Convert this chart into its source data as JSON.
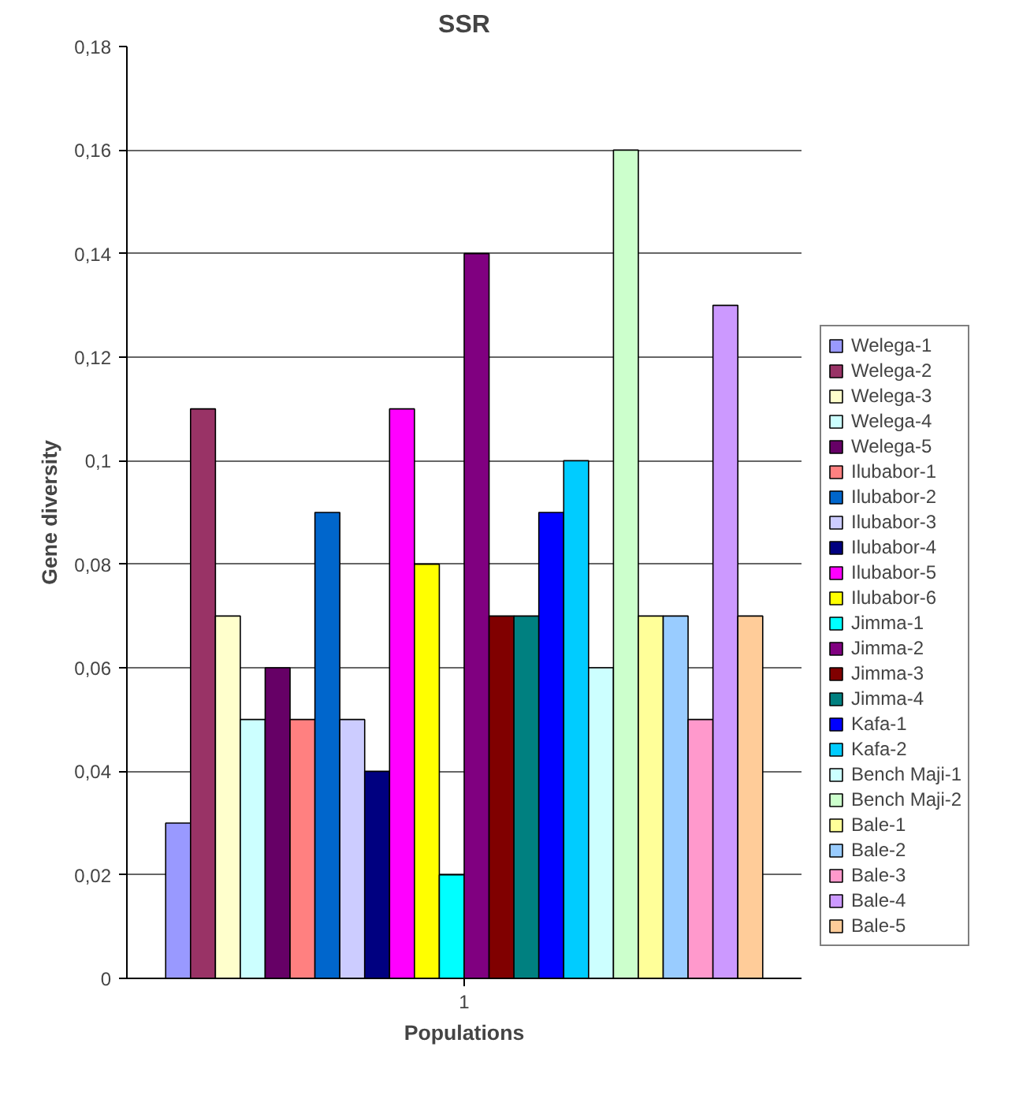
{
  "chart_data": {
    "type": "bar",
    "title": "SSR",
    "xlabel": "Populations",
    "ylabel": "Gene diversity",
    "categories": [
      "1"
    ],
    "ylim": [
      0,
      0.18
    ],
    "yticks": [
      0,
      {
        "value": 0.02,
        "label": "0,02"
      },
      {
        "value": 0.04,
        "label": "0,04"
      },
      {
        "value": 0.06,
        "label": "0,06"
      },
      {
        "value": 0.08,
        "label": "0,08"
      },
      {
        "value": 0.1,
        "label": "0,1"
      },
      {
        "value": 0.12,
        "label": "0,12"
      },
      {
        "value": 0.14,
        "label": "0,14"
      },
      {
        "value": 0.16,
        "label": "0,16"
      },
      {
        "value": 0.18,
        "label": "0,18"
      }
    ],
    "grid": "y",
    "legend": "right",
    "series": [
      {
        "name": "Welega-1",
        "color": "#9999ff",
        "values": [
          0.03
        ]
      },
      {
        "name": "Welega-2",
        "color": "#993366",
        "values": [
          0.11
        ]
      },
      {
        "name": "Welega-3",
        "color": "#ffffcc",
        "values": [
          0.07
        ]
      },
      {
        "name": "Welega-4",
        "color": "#ccffff",
        "values": [
          0.05
        ]
      },
      {
        "name": "Welega-5",
        "color": "#660066",
        "values": [
          0.06
        ]
      },
      {
        "name": "Ilubabor-1",
        "color": "#ff8080",
        "values": [
          0.05
        ]
      },
      {
        "name": "Ilubabor-2",
        "color": "#0066cc",
        "values": [
          0.09
        ]
      },
      {
        "name": "Ilubabor-3",
        "color": "#ccccff",
        "values": [
          0.05
        ]
      },
      {
        "name": "Ilubabor-4",
        "color": "#000080",
        "values": [
          0.04
        ]
      },
      {
        "name": "Ilubabor-5",
        "color": "#ff00ff",
        "values": [
          0.11
        ]
      },
      {
        "name": "Ilubabor-6",
        "color": "#ffff00",
        "values": [
          0.08
        ]
      },
      {
        "name": "Jimma-1",
        "color": "#00ffff",
        "values": [
          0.02
        ]
      },
      {
        "name": "Jimma-2",
        "color": "#800080",
        "values": [
          0.14
        ]
      },
      {
        "name": "Jimma-3",
        "color": "#800000",
        "values": [
          0.07
        ]
      },
      {
        "name": "Jimma-4",
        "color": "#008080",
        "values": [
          0.07
        ]
      },
      {
        "name": "Kafa-1",
        "color": "#0000ff",
        "values": [
          0.09
        ]
      },
      {
        "name": "Kafa-2",
        "color": "#00ccff",
        "values": [
          0.1
        ]
      },
      {
        "name": "Bench Maji-1",
        "color": "#ccffff",
        "values": [
          0.06
        ]
      },
      {
        "name": "Bench Maji-2",
        "color": "#ccffcc",
        "values": [
          0.16
        ]
      },
      {
        "name": "Bale-1",
        "color": "#ffff99",
        "values": [
          0.07
        ]
      },
      {
        "name": "Bale-2",
        "color": "#99ccff",
        "values": [
          0.07
        ]
      },
      {
        "name": "Bale-3",
        "color": "#ff99cc",
        "values": [
          0.05
        ]
      },
      {
        "name": "Bale-4",
        "color": "#cc99ff",
        "values": [
          0.13
        ]
      },
      {
        "name": "Bale-5",
        "color": "#ffcc99",
        "values": [
          0.07
        ]
      }
    ]
  }
}
